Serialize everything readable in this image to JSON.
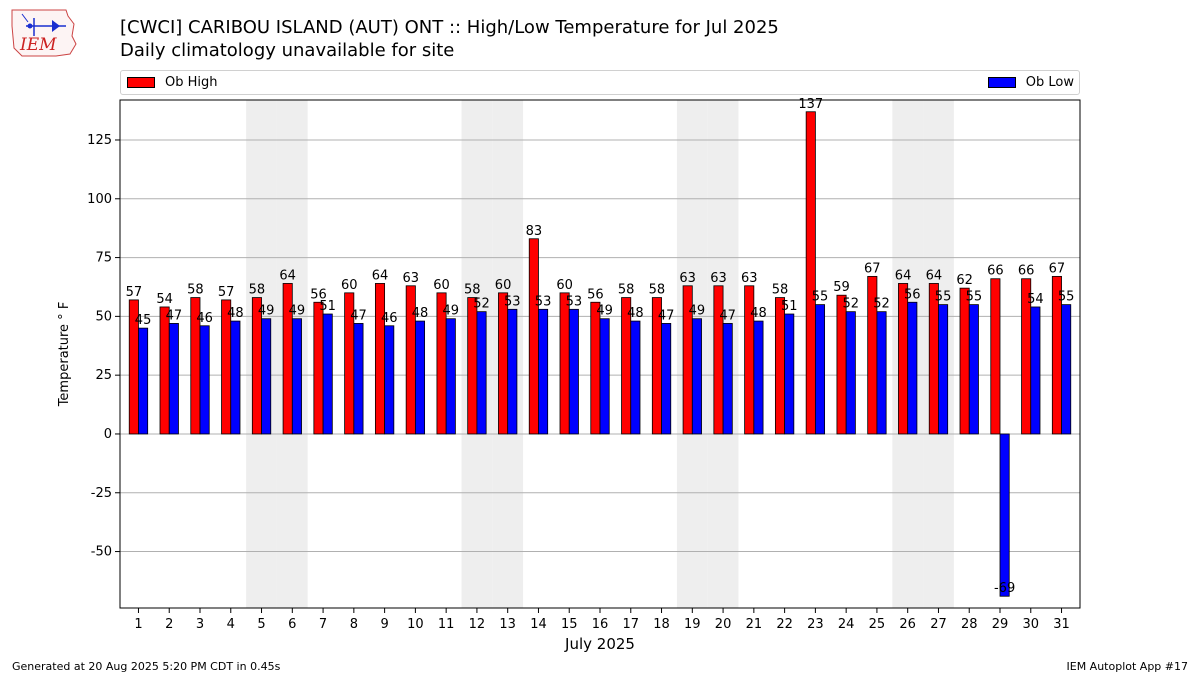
{
  "header": {
    "logo_text": "IEM",
    "title_line1": "[CWCI] CARIBOU ISLAND (AUT)  ONT :: High/Low Temperature for Jul 2025",
    "title_line2": "Daily climatology unavailable for site"
  },
  "footer": {
    "generated": "Generated at 20 Aug 2025 5:20 PM CDT in 0.45s",
    "app": "IEM Autoplot App #17"
  },
  "colors": {
    "high": "#ff0000",
    "low": "#0000ff",
    "weekend_band": "#eeeeee",
    "grid": "#b0b0b0"
  },
  "chart_data": {
    "type": "bar",
    "xlabel": "July 2025",
    "ylabel": "Temperature ° F",
    "ylim": [
      -74,
      142
    ],
    "yticks": [
      -50,
      -25,
      0,
      25,
      50,
      75,
      100,
      125
    ],
    "grid": "horizontal",
    "legend_placement": "top",
    "categories": [
      "1",
      "2",
      "3",
      "4",
      "5",
      "6",
      "7",
      "8",
      "9",
      "10",
      "11",
      "12",
      "13",
      "14",
      "15",
      "16",
      "17",
      "18",
      "19",
      "20",
      "21",
      "22",
      "23",
      "24",
      "25",
      "26",
      "27",
      "28",
      "29",
      "30",
      "31"
    ],
    "shaded_days": [
      5,
      6,
      12,
      13,
      19,
      20,
      26,
      27
    ],
    "series": [
      {
        "name": "Ob High",
        "values": [
          57,
          54,
          58,
          57,
          58,
          64,
          56,
          60,
          64,
          63,
          60,
          58,
          60,
          83,
          60,
          56,
          58,
          58,
          63,
          63,
          63,
          58,
          137,
          59,
          67,
          64,
          64,
          62,
          66,
          66,
          67
        ]
      },
      {
        "name": "Ob Low",
        "values": [
          45,
          47,
          46,
          48,
          49,
          49,
          51,
          47,
          46,
          48,
          49,
          52,
          53,
          53,
          53,
          49,
          48,
          47,
          49,
          47,
          48,
          51,
          55,
          52,
          52,
          56,
          55,
          55,
          -69,
          54,
          55
        ]
      }
    ]
  }
}
